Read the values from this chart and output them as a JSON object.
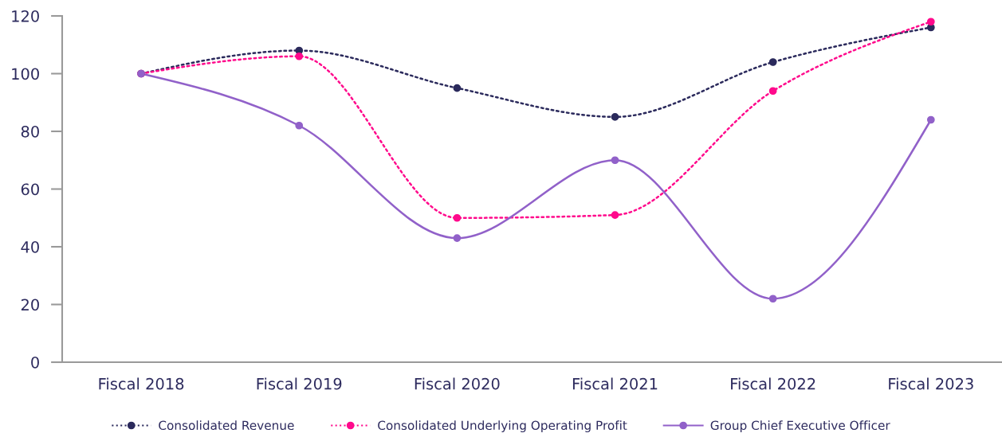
{
  "chart_data": {
    "type": "line",
    "categories": [
      "Fiscal 2018",
      "Fiscal 2019",
      "Fiscal 2020",
      "Fiscal 2021",
      "Fiscal 2022",
      "Fiscal 2023"
    ],
    "series": [
      {
        "name": "Consolidated Revenue",
        "color": "#2b2a5c",
        "line_style": "dotted",
        "marker": "circle",
        "values": [
          100,
          108,
          95,
          85,
          104,
          116
        ]
      },
      {
        "name": "Consolidated Underlying Operating Profit",
        "color": "#ff0a8c",
        "line_style": "dotted",
        "marker": "circle",
        "values": [
          100,
          106,
          50,
          51,
          94,
          118
        ]
      },
      {
        "name": "Group Chief Executive Officer",
        "color": "#9161c9",
        "line_style": "solid",
        "marker": "circle",
        "values": [
          100,
          82,
          43,
          70,
          22,
          84
        ]
      }
    ],
    "ylim": [
      0,
      120
    ],
    "yticks": [
      0,
      20,
      40,
      60,
      80,
      100,
      120
    ],
    "grid": false,
    "legend": "bottom"
  }
}
